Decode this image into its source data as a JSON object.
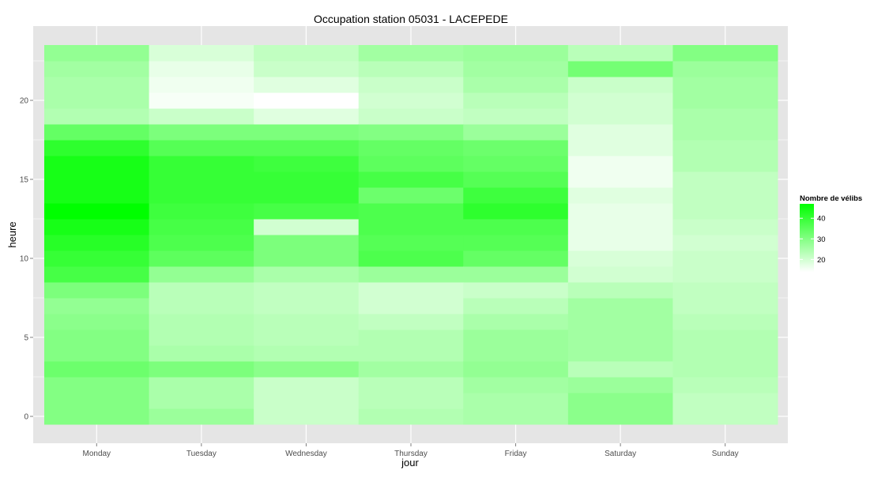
{
  "chart_data": {
    "type": "heatmap",
    "title": "Occupation station 05031 - LACEPEDE",
    "xlabel": "jour",
    "ylabel": "heure",
    "x_categories": [
      "Monday",
      "Tuesday",
      "Wednesday",
      "Thursday",
      "Friday",
      "Saturday",
      "Sunday"
    ],
    "y_ticks": [
      0,
      5,
      10,
      15,
      20
    ],
    "ylim": [
      -0.5,
      23.5
    ],
    "grid": true,
    "legend": {
      "title": "Nombre de vélibs",
      "position": "right",
      "ticks": [
        20,
        30,
        40
      ],
      "range": [
        14,
        47
      ],
      "low_color": "#ffffff",
      "high_color": "#00ff00"
    },
    "values_by_day": {
      "Monday": [
        30,
        30,
        30,
        33,
        30,
        30,
        29,
        28,
        31,
        38,
        40,
        42,
        44,
        47,
        44,
        44,
        44,
        41,
        34,
        24,
        25,
        25,
        26,
        28
      ],
      "Tuesday": [
        27,
        25,
        25,
        31,
        25,
        24,
        24,
        23,
        23,
        28,
        35,
        37,
        38,
        39,
        40,
        40,
        40,
        36,
        31,
        21,
        15,
        16,
        17,
        19
      ],
      "Wednesday": [
        21,
        21,
        21,
        29,
        24,
        23,
        23,
        22,
        22,
        25,
        31,
        31,
        20,
        38,
        40,
        40,
        39,
        36,
        31,
        18,
        14,
        18,
        21,
        22
      ],
      "Thursday": [
        24,
        23,
        23,
        26,
        24,
        24,
        22,
        20,
        20,
        27,
        37,
        36,
        37,
        37,
        33,
        38,
        35,
        34,
        30,
        21,
        20,
        21,
        23,
        26
      ],
      "Friday": [
        25,
        25,
        26,
        28,
        27,
        27,
        25,
        23,
        21,
        27,
        34,
        36,
        37,
        41,
        39,
        36,
        34,
        33,
        27,
        22,
        23,
        25,
        26,
        27
      ],
      "Saturday": [
        29,
        29,
        27,
        23,
        26,
        26,
        26,
        26,
        23,
        20,
        19,
        17,
        17,
        17,
        18,
        16,
        16,
        18,
        18,
        20,
        20,
        21,
        32,
        23
      ],
      "Sunday": [
        22,
        22,
        23,
        24,
        24,
        24,
        23,
        22,
        22,
        21,
        21,
        20,
        21,
        22,
        22,
        22,
        24,
        24,
        25,
        25,
        26,
        26,
        27,
        30
      ]
    }
  }
}
